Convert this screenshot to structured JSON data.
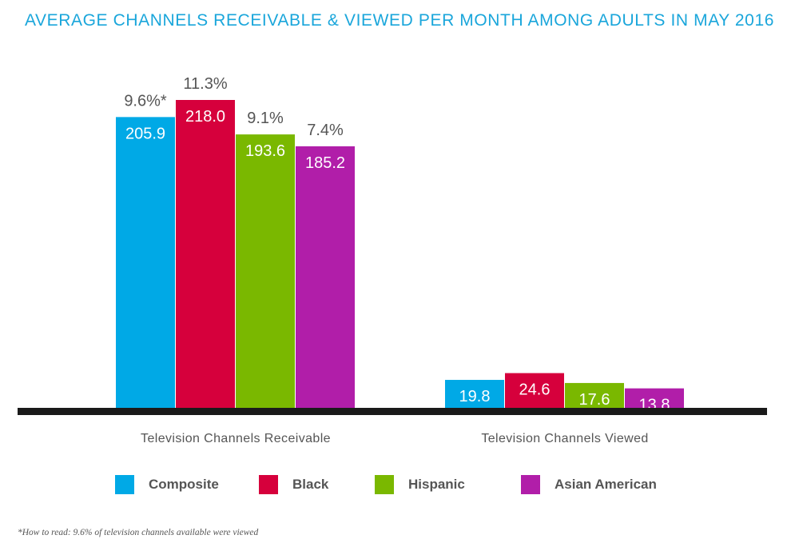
{
  "chart_data": {
    "type": "bar",
    "title": "AVERAGE CHANNELS RECEIVABLE & VIEWED PER MONTH AMONG ADULTS IN MAY 2016",
    "categories": [
      "Television Channels Receivable",
      "Television Channels Viewed"
    ],
    "series": [
      {
        "name": "Composite",
        "color": "#00a9e6",
        "values": [
          205.9,
          19.8
        ],
        "value_labels": [
          "205.9",
          "19.8"
        ],
        "pct_labels": [
          "9.6%*",
          ""
        ]
      },
      {
        "name": "Black",
        "color": "#d6003c",
        "values": [
          218.0,
          24.6
        ],
        "value_labels": [
          "218.0",
          "24.6"
        ],
        "pct_labels": [
          "11.3%",
          ""
        ]
      },
      {
        "name": "Hispanic",
        "color": "#7ab800",
        "values": [
          193.6,
          17.6
        ],
        "value_labels": [
          "193.6",
          "17.6"
        ],
        "pct_labels": [
          "9.1%",
          ""
        ]
      },
      {
        "name": "Asian American",
        "color": "#b11ea9",
        "values": [
          185.2,
          13.8
        ],
        "value_labels": [
          "185.2",
          "13.8"
        ],
        "pct_labels": [
          "7.4%",
          ""
        ]
      }
    ],
    "ylim": [
      0,
      218.0
    ],
    "grid": false,
    "legend_position": "bottom",
    "footnote": "*How to read: 9.6% of television channels available were viewed"
  }
}
